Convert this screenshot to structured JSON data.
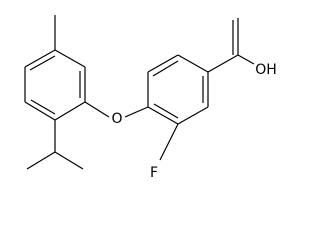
{
  "atoms": [
    {
      "label": "O"
    },
    {
      "label": "F"
    },
    {
      "label": "OH"
    }
  ]
}
